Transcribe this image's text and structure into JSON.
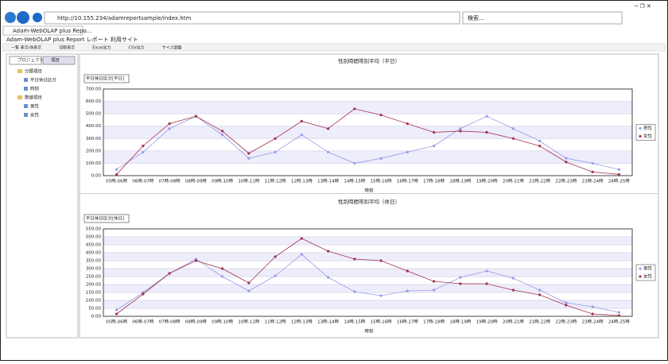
{
  "browser": {
    "url": "http://10.155.234/adamreportsample/index.htm",
    "search": "検索...",
    "tab": "Adam-WebOLAP plus Repo...",
    "site_title": "Adam-WebOLAP plus Report レポート 利用サイト",
    "toolbar": [
      "一覧 表示/非表示",
      "切断表示",
      "Excel出力",
      "CSV出力",
      "サイズ調整"
    ]
  },
  "left_pane": {
    "tabs": [
      "プロジェクト",
      "項目"
    ],
    "tree": [
      {
        "label": "分類項目",
        "children": [
          "平日休日区分",
          "時刻"
        ]
      },
      {
        "label": "数値項目",
        "children": [
          "男性",
          "女性"
        ]
      }
    ]
  },
  "chart_data": [
    {
      "type": "line",
      "title": "性別時間帯別平均（平日）",
      "filter": "平日休日区分[平日]",
      "x_label": "時刻",
      "categories": [
        "05時-06時",
        "06時-07時",
        "07時-08時",
        "08時-09時",
        "09時-10時",
        "10時-11時",
        "11時-12時",
        "12時-13時",
        "13時-14時",
        "14時-15時",
        "15時-16時",
        "16時-17時",
        "17時-18時",
        "18時-19時",
        "19時-20時",
        "20時-21時",
        "21時-22時",
        "22時-23時",
        "23時-24時",
        "24時-25時"
      ],
      "ylim": [
        0,
        700
      ],
      "yticks": [
        {
          "value": 0,
          "label": "0.00"
        },
        {
          "value": 100,
          "label": "100.00"
        },
        {
          "value": 200,
          "label": "200.00"
        },
        {
          "value": 300,
          "label": "300.00"
        },
        {
          "value": 400,
          "label": "400.00"
        },
        {
          "value": 500,
          "label": "500.00"
        },
        {
          "value": 600,
          "label": "600.00"
        },
        {
          "value": 700,
          "label": "700.00"
        }
      ],
      "series": [
        {
          "name": "男性",
          "color": "#9a9ae8",
          "values": [
            50,
            190,
            380,
            480,
            330,
            140,
            190,
            330,
            190,
            100,
            140,
            190,
            240,
            380,
            480,
            380,
            280,
            140,
            100,
            50
          ]
        },
        {
          "name": "女性",
          "color": "#a3304f",
          "values": [
            10,
            240,
            420,
            480,
            360,
            180,
            300,
            440,
            380,
            540,
            490,
            420,
            350,
            360,
            350,
            300,
            240,
            110,
            30,
            10
          ]
        }
      ]
    },
    {
      "type": "line",
      "title": "性別時間帯別平均（休日）",
      "filter": "平日休日区分[休日]",
      "x_label": "時刻",
      "categories": [
        "05時-06時",
        "06時-07時",
        "07時-08時",
        "08時-09時",
        "09時-10時",
        "10時-11時",
        "11時-12時",
        "12時-13時",
        "13時-14時",
        "14時-15時",
        "15時-16時",
        "16時-17時",
        "17時-18時",
        "18時-19時",
        "19時-20時",
        "20時-21時",
        "21時-22時",
        "22時-23時",
        "23時-24時",
        "24時-25時"
      ],
      "ylim": [
        0,
        550
      ],
      "yticks": [
        {
          "value": 0,
          "label": "0.00"
        },
        {
          "value": 50,
          "label": "50.00"
        },
        {
          "value": 100,
          "label": "100.00"
        },
        {
          "value": 150,
          "label": "150.00"
        },
        {
          "value": 200,
          "label": "200.00"
        },
        {
          "value": 250,
          "label": "250.00"
        },
        {
          "value": 300,
          "label": "300.00"
        },
        {
          "value": 350,
          "label": "350.00"
        },
        {
          "value": 400,
          "label": "400.00"
        },
        {
          "value": 450,
          "label": "450.00"
        },
        {
          "value": 500,
          "label": "500.00"
        },
        {
          "value": 550,
          "label": "550.00"
        }
      ],
      "series": [
        {
          "name": "男性",
          "color": "#9a9ae8",
          "values": [
            40,
            150,
            270,
            360,
            250,
            160,
            255,
            390,
            245,
            155,
            130,
            160,
            165,
            245,
            285,
            240,
            165,
            85,
            60,
            25
          ]
        },
        {
          "name": "女性",
          "color": "#a3304f",
          "values": [
            15,
            140,
            270,
            350,
            300,
            210,
            375,
            490,
            410,
            360,
            350,
            285,
            220,
            205,
            205,
            165,
            135,
            70,
            15,
            5
          ]
        }
      ]
    }
  ]
}
